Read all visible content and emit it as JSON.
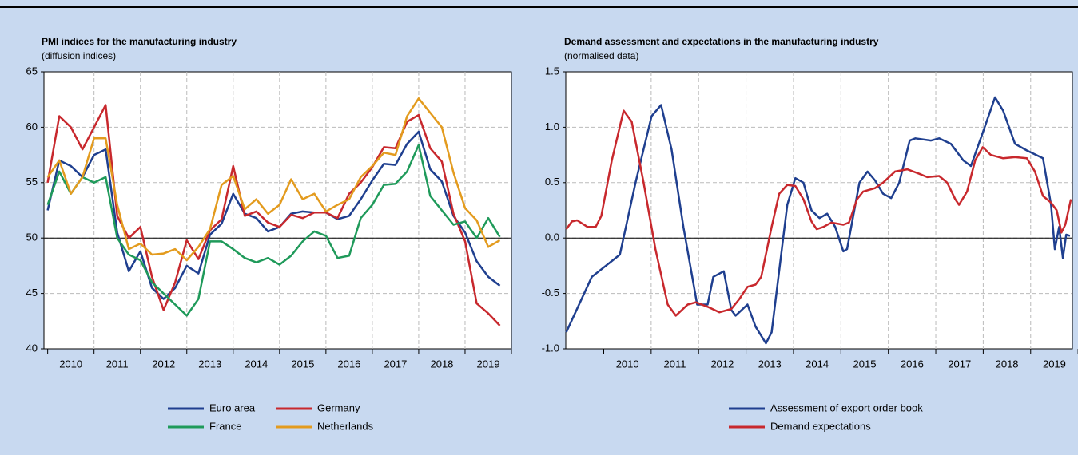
{
  "chart_data": [
    {
      "type": "line",
      "title": "PMI indices for the manufacturing industry",
      "subtitle": "(diffusion indices)",
      "x": [
        2010.0,
        2010.25,
        2010.5,
        2010.75,
        2011.0,
        2011.25,
        2011.5,
        2011.75,
        2012.0,
        2012.25,
        2012.5,
        2012.75,
        2013.0,
        2013.25,
        2013.5,
        2013.75,
        2014.0,
        2014.25,
        2014.5,
        2014.75,
        2015.0,
        2015.25,
        2015.5,
        2015.75,
        2016.0,
        2016.25,
        2016.5,
        2016.75,
        2017.0,
        2017.25,
        2017.5,
        2017.75,
        2018.0,
        2018.25,
        2018.5,
        2018.75,
        2019.0,
        2019.25,
        2019.5,
        2019.75
      ],
      "series": [
        {
          "name": "Euro area",
          "color": "#1f3f8f",
          "values": [
            52.5,
            57,
            56.5,
            55.5,
            57.5,
            58,
            50.5,
            47,
            48.8,
            45.5,
            44.5,
            45.5,
            47.5,
            46.8,
            50.3,
            51.3,
            54,
            52.2,
            51.8,
            50.6,
            51,
            52.2,
            52.4,
            52.3,
            52.3,
            51.7,
            52,
            53.5,
            55.2,
            56.7,
            56.6,
            58.5,
            59.6,
            56.2,
            55.1,
            52,
            50.5,
            47.9,
            46.5,
            45.7
          ]
        },
        {
          "name": "Germany",
          "color": "#c8282d",
          "values": [
            55,
            61,
            60,
            58,
            60,
            62,
            52,
            50,
            51,
            46.5,
            43.5,
            46,
            49.8,
            48.1,
            50.7,
            51.7,
            56.5,
            52,
            52.4,
            51.4,
            51,
            52.1,
            51.8,
            52.3,
            52.3,
            51.8,
            54,
            55,
            56.4,
            58.2,
            58.1,
            60.5,
            61.1,
            58.1,
            56.9,
            52.2,
            49.7,
            44.1,
            43.2,
            42.1
          ]
        },
        {
          "name": "France",
          "color": "#1f9a5a",
          "values": [
            53,
            56,
            54,
            55.5,
            55,
            55.5,
            50,
            48.5,
            48,
            46,
            45,
            44,
            43,
            44.5,
            49.7,
            49.7,
            49,
            48.2,
            47.8,
            48.2,
            47.6,
            48.4,
            49.7,
            50.6,
            50.2,
            48.2,
            48.4,
            51.8,
            53,
            54.8,
            54.9,
            56,
            58.4,
            53.8,
            52.5,
            51.2,
            51.5,
            50,
            51.8,
            50.1
          ]
        },
        {
          "name": "Netherlands",
          "color": "#e39b1e",
          "values": [
            55.5,
            57,
            54,
            55.5,
            59,
            59,
            53,
            49,
            49.5,
            48.5,
            48.6,
            49,
            48,
            49.2,
            50.8,
            54.8,
            55.6,
            52.6,
            53.5,
            52.2,
            53,
            55.3,
            53.5,
            54,
            52.4,
            53,
            53.5,
            55.5,
            56.5,
            57.7,
            57.5,
            61,
            62.6,
            61.3,
            60,
            55.9,
            52.7,
            51.6,
            49.2,
            49.8
          ]
        }
      ],
      "xlim": [
        2009.92,
        2020.0
      ],
      "xticks": [
        {
          "value": 2010.5,
          "label": "2010"
        },
        {
          "value": 2011.5,
          "label": "2011"
        },
        {
          "value": 2012.5,
          "label": "2012"
        },
        {
          "value": 2013.5,
          "label": "2013"
        },
        {
          "value": 2014.5,
          "label": "2014"
        },
        {
          "value": 2015.5,
          "label": "2015"
        },
        {
          "value": 2016.5,
          "label": "2016"
        },
        {
          "value": 2017.5,
          "label": "2017"
        },
        {
          "value": 2018.5,
          "label": "2018"
        },
        {
          "value": 2019.5,
          "label": "2019"
        }
      ],
      "ylim": [
        40,
        65
      ],
      "yticks": [
        40,
        45,
        50,
        55,
        60,
        65
      ],
      "hline": 50,
      "grid": true,
      "legend": "bottom"
    },
    {
      "type": "line",
      "title": "Demand assessment and expectations in the manufacturing industry",
      "subtitle": "(normalised data)",
      "series": [
        {
          "name": "Assessment of export order book",
          "color": "#1f3f8f",
          "x": [
            2009.21,
            2009.75,
            2010.34,
            2010.67,
            2011.01,
            2011.21,
            2011.43,
            2011.68,
            2011.97,
            2012.19,
            2012.31,
            2012.53,
            2012.69,
            2012.78,
            2013.03,
            2013.2,
            2013.42,
            2013.54,
            2013.87,
            2014.04,
            2014.21,
            2014.38,
            2014.55,
            2014.71,
            2014.88,
            2015.05,
            2015.13,
            2015.39,
            2015.56,
            2015.72,
            2015.89,
            2016.06,
            2016.23,
            2016.45,
            2016.57,
            2016.9,
            2017.07,
            2017.32,
            2017.58,
            2017.74,
            2017.99,
            2018.25,
            2018.42,
            2018.67,
            2018.92,
            2019.26,
            2019.43,
            2019.51,
            2019.6,
            2019.68,
            2019.75,
            2019.83
          ],
          "values": [
            -0.85,
            -0.35,
            -0.15,
            0.5,
            1.1,
            1.2,
            0.8,
            0.1,
            -0.6,
            -0.6,
            -0.35,
            -0.3,
            -0.65,
            -0.7,
            -0.6,
            -0.8,
            -0.95,
            -0.85,
            0.3,
            0.54,
            0.5,
            0.25,
            0.18,
            0.22,
            0.1,
            -0.12,
            -0.1,
            0.5,
            0.6,
            0.52,
            0.4,
            0.36,
            0.5,
            0.88,
            0.9,
            0.88,
            0.9,
            0.85,
            0.7,
            0.65,
            0.95,
            1.27,
            1.15,
            0.85,
            0.79,
            0.72,
            0.3,
            -0.1,
            0.1,
            -0.18,
            0.03,
            0.02
          ]
        },
        {
          "name": "Demand expectations",
          "color": "#c8282d",
          "x": [
            2009.21,
            2009.33,
            2009.44,
            2009.66,
            2009.83,
            2009.95,
            2010.17,
            2010.42,
            2010.59,
            2010.84,
            2011.09,
            2011.35,
            2011.52,
            2011.77,
            2011.94,
            2012.19,
            2012.44,
            2012.69,
            2012.86,
            2013.03,
            2013.2,
            2013.32,
            2013.54,
            2013.7,
            2013.87,
            2014.04,
            2014.21,
            2014.38,
            2014.49,
            2014.63,
            2014.8,
            2015.05,
            2015.17,
            2015.34,
            2015.47,
            2015.72,
            2015.89,
            2016.14,
            2016.4,
            2016.65,
            2016.82,
            2017.07,
            2017.24,
            2017.41,
            2017.49,
            2017.66,
            2017.83,
            2017.99,
            2018.16,
            2018.42,
            2018.67,
            2018.92,
            2019.09,
            2019.26,
            2019.43,
            2019.55,
            2019.65,
            2019.73,
            2019.85
          ],
          "values": [
            0.08,
            0.15,
            0.16,
            0.1,
            0.1,
            0.2,
            0.7,
            1.15,
            1.05,
            0.5,
            -0.1,
            -0.6,
            -0.7,
            -0.6,
            -0.58,
            -0.62,
            -0.67,
            -0.64,
            -0.55,
            -0.44,
            -0.42,
            -0.35,
            0.1,
            0.4,
            0.48,
            0.47,
            0.35,
            0.15,
            0.08,
            0.1,
            0.14,
            0.12,
            0.14,
            0.35,
            0.42,
            0.45,
            0.5,
            0.6,
            0.62,
            0.58,
            0.55,
            0.56,
            0.5,
            0.35,
            0.3,
            0.42,
            0.7,
            0.82,
            0.75,
            0.72,
            0.73,
            0.72,
            0.6,
            0.38,
            0.32,
            0.25,
            0.05,
            0.12,
            0.35
          ]
        }
      ],
      "xlim": [
        2009.2,
        2019.88
      ],
      "xticks": [
        {
          "value": 2010.5,
          "label": "2010"
        },
        {
          "value": 2011.5,
          "label": "2011"
        },
        {
          "value": 2012.5,
          "label": "2012"
        },
        {
          "value": 2013.5,
          "label": "2013"
        },
        {
          "value": 2014.5,
          "label": "2014"
        },
        {
          "value": 2015.5,
          "label": "2015"
        },
        {
          "value": 2016.5,
          "label": "2016"
        },
        {
          "value": 2017.5,
          "label": "2017"
        },
        {
          "value": 2018.5,
          "label": "2018"
        },
        {
          "value": 2019.5,
          "label": "2019"
        }
      ],
      "ylim": [
        -1.0,
        1.5
      ],
      "yticks": [
        {
          "value": -1.0,
          "label": "-1.0"
        },
        -0.5,
        {
          "value": 0.0,
          "label": "0.0"
        },
        0.5,
        {
          "value": 1.0,
          "label": "1.0"
        },
        1.5
      ],
      "hline": 0,
      "grid": true,
      "legend": "bottom"
    }
  ]
}
